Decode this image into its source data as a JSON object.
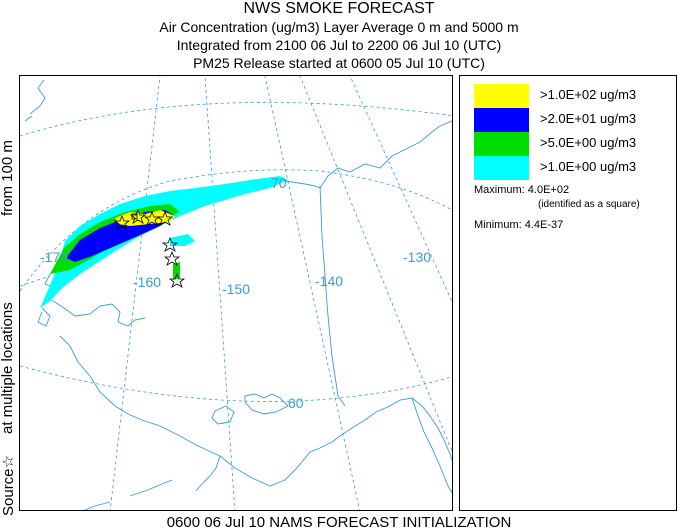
{
  "title": {
    "line1": "NWS SMOKE FORECAST",
    "line2": "Air Concentration (ug/m3) Layer Average    0 m and  5000 m",
    "line3": "Integrated from 2100 06 Jul to 2200 06 Jul 10 (UTC)",
    "line4": "PM25 Release started at 0600 05 Jul 10 (UTC)"
  },
  "side": {
    "source": "Source☆",
    "locations": "at multiple locations",
    "from": "from   100 m"
  },
  "map": {
    "longitude_labels": [
      "-170",
      "-160",
      "-150",
      "-140",
      "-130"
    ],
    "latitude_labels": [
      "70",
      "60"
    ],
    "graticule_color": "#3a9ad6",
    "coast_color": "#3a9ad6"
  },
  "legend": {
    "items": [
      {
        "label": ">1.0E+02 ug/m3",
        "color": "#ffff00"
      },
      {
        "label": ">2.0E+01 ug/m3",
        "color": "#0000ff"
      },
      {
        "label": ">5.0E+00 ug/m3",
        "color": "#00dd00"
      },
      {
        "label": ">1.0E+00 ug/m3",
        "color": "#00ffff"
      }
    ],
    "maximum_label": "Maximum: 4.0E+02",
    "maximum_note": "(identified as a square)",
    "minimum_label": "Minimum: 4.4E-37"
  },
  "footer": "0600 06 Jul 10 NAMS FORECAST INITIALIZATION"
}
